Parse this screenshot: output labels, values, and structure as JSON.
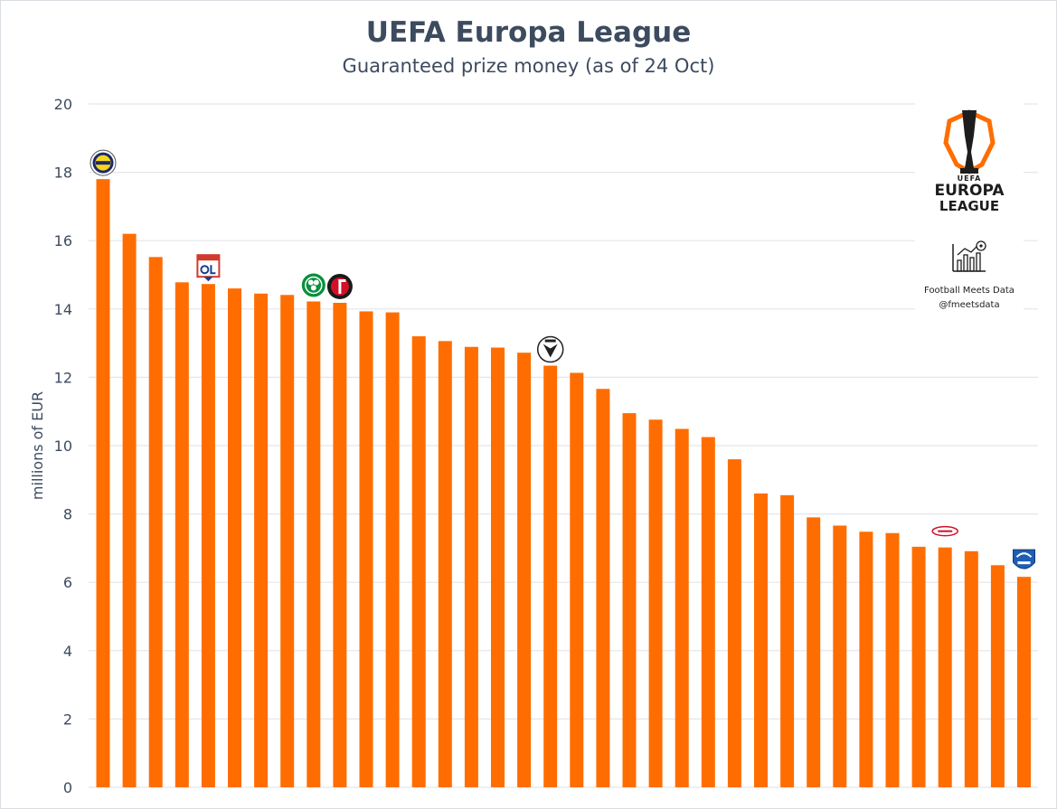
{
  "colors": {
    "bar": "#ff6d00",
    "text": "#3d4b5f",
    "grid": "#e3e6ea"
  },
  "chart_data": {
    "type": "bar",
    "title": "UEFA Europa League",
    "subtitle": "Guaranteed prize money (as of 24 Oct)",
    "xlabel": "",
    "ylabel": "millions of EUR",
    "ylim": [
      0,
      20
    ],
    "yticks": [
      "0",
      "2",
      "4",
      "6",
      "8",
      "10",
      "12",
      "14",
      "16",
      "18",
      "20"
    ],
    "grid": true,
    "values": [
      17.8,
      16.2,
      15.52,
      14.78,
      14.73,
      14.6,
      14.45,
      14.41,
      14.22,
      14.18,
      13.93,
      13.9,
      13.2,
      13.06,
      12.89,
      12.87,
      12.72,
      12.34,
      12.13,
      11.66,
      10.95,
      10.76,
      10.49,
      10.25,
      9.6,
      8.6,
      8.55,
      7.9,
      7.66,
      7.48,
      7.44,
      7.04,
      7.02,
      6.91,
      6.5,
      6.16
    ],
    "club_badges": [
      {
        "index": 0,
        "icon": "fenerbahce-badge-icon"
      },
      {
        "index": 4,
        "icon": "lyon-badge-icon"
      },
      {
        "index": 8,
        "icon": "celtic-badge-icon"
      },
      {
        "index": 9,
        "icon": "feyenoord-badge-icon"
      },
      {
        "index": 17,
        "icon": "paok-badge-icon"
      },
      {
        "index": 32,
        "icon": "brann-badge-icon"
      },
      {
        "index": 35,
        "icon": "genk-badge-icon"
      }
    ]
  },
  "branding": {
    "uefa": "UEFA",
    "europa": "EUROPA",
    "league": "LEAGUE",
    "author": "Football Meets Data",
    "handle": "@fmeetsdata"
  }
}
